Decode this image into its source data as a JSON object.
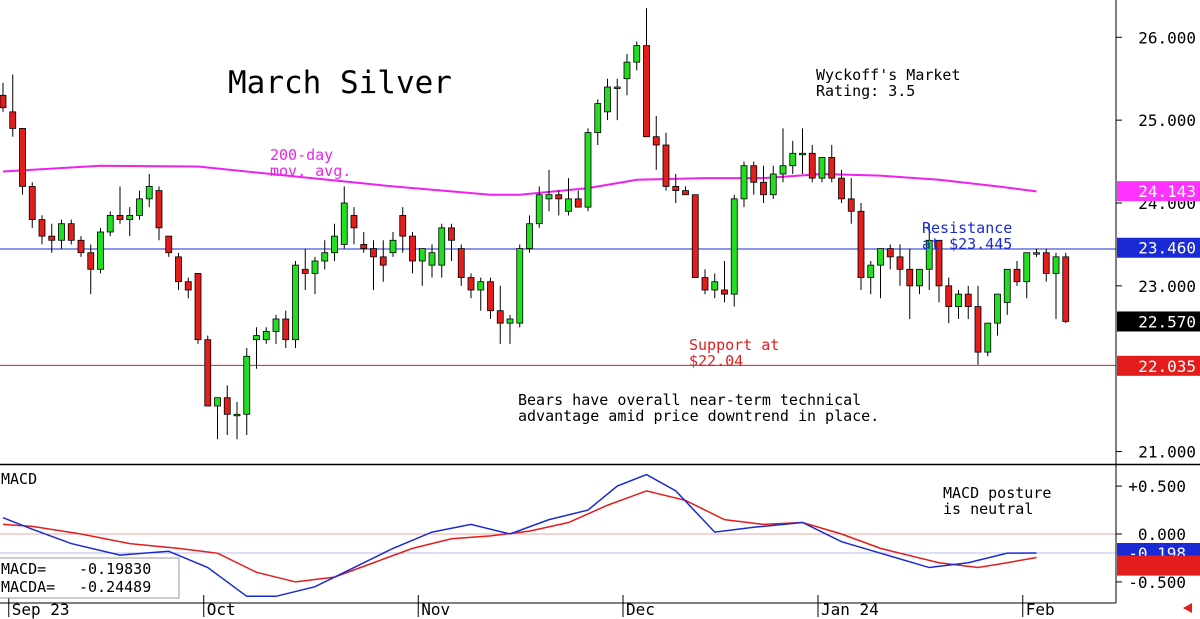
{
  "chart_data": {
    "type": "candlestick",
    "title": "March Silver",
    "rating_text": [
      "Wyckoff's Market",
      "Rating: 3.5"
    ],
    "ylim": [
      20.85,
      26.45
    ],
    "y_ticks": [
      {
        "value": 26.0,
        "label": "26.000"
      },
      {
        "value": 25.0,
        "label": "25.000"
      },
      {
        "value": 24.0,
        "label": "24.000"
      },
      {
        "value": 23.0,
        "label": "23.000"
      },
      {
        "value": 21.0,
        "label": "21.000"
      }
    ],
    "x_labels": [
      {
        "index": 1,
        "label": "Sep 23"
      },
      {
        "index": 21,
        "label": "Oct"
      },
      {
        "index": 43,
        "label": "Nov"
      },
      {
        "index": 64,
        "label": "Dec"
      },
      {
        "index": 84,
        "label": "Jan 24"
      },
      {
        "index": 105,
        "label": "Feb"
      }
    ],
    "price_tags": [
      {
        "value": 24.143,
        "label": "24.143",
        "color": "#ff33ff",
        "text_color": "#ffffff"
      },
      {
        "value": 23.46,
        "label": "23.460",
        "color": "#1a2ad4",
        "text_color": "#ffffff"
      },
      {
        "value": 22.57,
        "label": "22.570",
        "color": "#000000",
        "text_color": "#ffffff"
      },
      {
        "value": 22.035,
        "label": "22.035",
        "color": "#e31c1c",
        "text_color": "#ffffff"
      }
    ],
    "resistance": {
      "value": 23.445,
      "label": [
        "Resistance",
        "at $23.445"
      ],
      "color": "#1a2ad4"
    },
    "support": {
      "value": 22.04,
      "label": [
        "Support at",
        "$22.04"
      ],
      "color": "#e31c1c"
    },
    "moving_average": {
      "label": [
        "200-day",
        "mov. avg."
      ],
      "color": "#ee22ee",
      "points": [
        [
          0,
          24.38
        ],
        [
          10,
          24.45
        ],
        [
          20,
          24.44
        ],
        [
          30,
          24.32
        ],
        [
          40,
          24.2
        ],
        [
          50,
          24.1
        ],
        [
          53,
          24.1
        ],
        [
          60,
          24.18
        ],
        [
          65,
          24.28
        ],
        [
          72,
          24.3
        ],
        [
          78,
          24.3
        ],
        [
          84,
          24.35
        ],
        [
          90,
          24.33
        ],
        [
          96,
          24.28
        ],
        [
          102,
          24.2
        ],
        [
          106,
          24.14
        ]
      ]
    },
    "commentary": [
      "Bears have overall near-term technical",
      "advantage amid price downtrend in place."
    ],
    "series": [
      {
        "name": "candles",
        "values": [
          [
            25.3,
            25.45,
            25.1,
            25.15
          ],
          [
            25.1,
            25.55,
            24.8,
            24.9
          ],
          [
            24.9,
            24.9,
            24.1,
            24.2
          ],
          [
            24.2,
            24.25,
            23.7,
            23.8
          ],
          [
            23.8,
            23.85,
            23.5,
            23.6
          ],
          [
            23.6,
            23.75,
            23.4,
            23.55
          ],
          [
            23.55,
            23.8,
            23.45,
            23.75
          ],
          [
            23.75,
            23.8,
            23.5,
            23.55
          ],
          [
            23.55,
            23.6,
            23.35,
            23.4
          ],
          [
            23.4,
            23.5,
            22.9,
            23.2
          ],
          [
            23.2,
            23.7,
            23.15,
            23.65
          ],
          [
            23.65,
            23.9,
            23.6,
            23.85
          ],
          [
            23.85,
            24.2,
            23.75,
            23.8
          ],
          [
            23.8,
            23.95,
            23.6,
            23.85
          ],
          [
            23.85,
            24.15,
            23.8,
            24.05
          ],
          [
            24.05,
            24.35,
            23.95,
            24.2
          ],
          [
            24.15,
            24.2,
            23.55,
            23.7
          ],
          [
            23.6,
            23.6,
            23.35,
            23.4
          ],
          [
            23.35,
            23.4,
            22.95,
            23.05
          ],
          [
            23.05,
            23.1,
            22.85,
            22.95
          ],
          [
            23.15,
            23.15,
            22.3,
            22.35
          ],
          [
            22.35,
            22.4,
            21.55,
            21.55
          ],
          [
            21.55,
            21.65,
            21.15,
            21.65
          ],
          [
            21.65,
            21.8,
            21.2,
            21.45
          ],
          [
            21.45,
            21.6,
            21.15,
            21.45
          ],
          [
            21.45,
            22.25,
            21.2,
            22.15
          ],
          [
            22.35,
            22.5,
            22.0,
            22.4
          ],
          [
            22.35,
            22.5,
            22.3,
            22.45
          ],
          [
            22.45,
            22.65,
            22.3,
            22.6
          ],
          [
            22.6,
            22.7,
            22.25,
            22.35
          ],
          [
            22.35,
            23.3,
            22.25,
            23.25
          ],
          [
            23.2,
            23.45,
            22.95,
            23.15
          ],
          [
            23.15,
            23.35,
            22.9,
            23.3
          ],
          [
            23.3,
            23.55,
            23.2,
            23.4
          ],
          [
            23.4,
            23.75,
            23.3,
            23.6
          ],
          [
            23.5,
            24.2,
            23.45,
            24.0
          ],
          [
            23.85,
            23.95,
            23.5,
            23.7
          ],
          [
            23.5,
            23.65,
            23.4,
            23.45
          ],
          [
            23.45,
            23.55,
            22.95,
            23.35
          ],
          [
            23.35,
            23.55,
            23.05,
            23.25
          ],
          [
            23.4,
            23.65,
            23.35,
            23.55
          ],
          [
            23.85,
            23.95,
            23.4,
            23.6
          ],
          [
            23.6,
            23.65,
            23.15,
            23.3
          ],
          [
            23.3,
            23.45,
            23.0,
            23.45
          ],
          [
            23.25,
            23.5,
            23.1,
            23.4
          ],
          [
            23.25,
            23.75,
            23.1,
            23.7
          ],
          [
            23.7,
            23.75,
            23.3,
            23.55
          ],
          [
            23.45,
            23.5,
            23.0,
            23.1
          ],
          [
            23.1,
            23.15,
            22.85,
            22.95
          ],
          [
            22.95,
            23.1,
            22.7,
            23.05
          ],
          [
            23.05,
            23.1,
            22.6,
            22.7
          ],
          [
            22.7,
            23.0,
            22.3,
            22.55
          ],
          [
            22.55,
            22.65,
            22.3,
            22.6
          ],
          [
            22.55,
            23.5,
            22.5,
            23.45
          ],
          [
            23.45,
            23.85,
            23.4,
            23.75
          ],
          [
            23.75,
            24.2,
            23.7,
            24.1
          ],
          [
            24.05,
            24.4,
            23.9,
            24.1
          ],
          [
            24.1,
            24.15,
            23.85,
            24.05
          ],
          [
            23.9,
            24.3,
            23.85,
            24.05
          ],
          [
            24.05,
            24.15,
            23.95,
            23.95
          ],
          [
            23.95,
            24.9,
            23.9,
            24.85
          ],
          [
            24.85,
            25.25,
            24.7,
            25.2
          ],
          [
            25.1,
            25.5,
            25.0,
            25.4
          ],
          [
            25.4,
            25.5,
            25.0,
            25.4
          ],
          [
            25.5,
            25.8,
            25.3,
            25.7
          ],
          [
            25.7,
            25.95,
            25.6,
            25.9
          ],
          [
            25.9,
            26.35,
            24.8,
            24.8
          ],
          [
            24.8,
            25.05,
            24.4,
            24.7
          ],
          [
            24.7,
            24.85,
            24.15,
            24.2
          ],
          [
            24.2,
            24.35,
            24.0,
            24.15
          ],
          [
            24.15,
            24.2,
            24.1,
            24.1
          ],
          [
            24.1,
            24.1,
            23.1,
            23.1
          ],
          [
            23.1,
            23.2,
            22.9,
            22.95
          ],
          [
            22.95,
            23.15,
            22.85,
            23.05
          ],
          [
            22.95,
            23.3,
            22.8,
            22.9
          ],
          [
            22.9,
            24.1,
            22.75,
            24.05
          ],
          [
            24.05,
            24.5,
            23.95,
            24.45
          ],
          [
            24.45,
            24.5,
            24.1,
            24.25
          ],
          [
            24.25,
            24.45,
            24.0,
            24.1
          ],
          [
            24.1,
            24.45,
            24.05,
            24.35
          ],
          [
            24.35,
            24.9,
            24.25,
            24.45
          ],
          [
            24.45,
            24.75,
            24.35,
            24.6
          ],
          [
            24.6,
            24.9,
            24.35,
            24.6
          ],
          [
            24.6,
            24.7,
            24.25,
            24.3
          ],
          [
            24.3,
            24.5,
            24.25,
            24.55
          ],
          [
            24.55,
            24.7,
            24.25,
            24.3
          ],
          [
            24.3,
            24.4,
            24.0,
            24.05
          ],
          [
            24.05,
            24.3,
            23.75,
            23.9
          ],
          [
            23.9,
            24.0,
            22.95,
            23.1
          ],
          [
            23.1,
            23.3,
            22.9,
            23.25
          ],
          [
            23.25,
            23.45,
            22.85,
            23.45
          ],
          [
            23.45,
            23.5,
            23.2,
            23.35
          ],
          [
            23.35,
            23.5,
            23.0,
            23.2
          ],
          [
            23.2,
            23.45,
            22.6,
            23.0
          ],
          [
            23.0,
            23.2,
            22.9,
            23.2
          ],
          [
            23.2,
            23.75,
            22.95,
            23.55
          ],
          [
            23.55,
            23.55,
            22.8,
            23.0
          ],
          [
            23.0,
            23.1,
            22.55,
            22.75
          ],
          [
            22.75,
            22.95,
            22.6,
            22.9
          ],
          [
            22.9,
            23.0,
            22.6,
            22.75
          ],
          [
            22.75,
            23.0,
            22.05,
            22.2
          ],
          [
            22.2,
            22.55,
            22.15,
            22.55
          ],
          [
            22.55,
            22.8,
            22.4,
            22.9
          ],
          [
            22.8,
            23.2,
            22.65,
            23.2
          ],
          [
            23.2,
            23.3,
            23.0,
            23.05
          ],
          [
            23.05,
            23.35,
            22.85,
            23.4
          ],
          [
            23.4,
            23.45,
            23.35,
            23.4
          ],
          [
            23.4,
            23.45,
            23.05,
            23.15
          ],
          [
            23.15,
            23.4,
            22.6,
            23.35
          ],
          [
            23.35,
            23.4,
            22.55,
            22.57
          ]
        ]
      }
    ],
    "macd": {
      "title": "MACD",
      "ylim": [
        -0.72,
        0.72
      ],
      "y_ticks": [
        {
          "value": 0.5,
          "label": "+0.500"
        },
        {
          "value": 0.0,
          "label": "0.000"
        },
        {
          "value": -0.5,
          "label": "-0.500"
        }
      ],
      "reference_line": -0.198,
      "commentary": [
        "MACD posture",
        "is neutral"
      ],
      "readout": {
        "macd_label": "MACD=",
        "macd_value": "-0.19830",
        "macda_label": "MACDA=",
        "macda_value": "-0.24489"
      },
      "tags": [
        {
          "value": -0.198,
          "label": "-0.198",
          "color": "#1a2ad4",
          "text_color": "#ffffff"
        },
        {
          "value": -0.33,
          "label": "",
          "color": "#e31c1c",
          "text_color": "#ffffff"
        }
      ],
      "macd_line": {
        "color": "#1a2ad4",
        "points": [
          [
            0,
            0.17
          ],
          [
            3,
            0.05
          ],
          [
            7,
            -0.1
          ],
          [
            12,
            -0.22
          ],
          [
            17,
            -0.18
          ],
          [
            21,
            -0.35
          ],
          [
            25,
            -0.65
          ],
          [
            28,
            -0.65
          ],
          [
            32,
            -0.55
          ],
          [
            36,
            -0.35
          ],
          [
            40,
            -0.15
          ],
          [
            44,
            0.02
          ],
          [
            48,
            0.1
          ],
          [
            52,
            0.0
          ],
          [
            56,
            0.15
          ],
          [
            60,
            0.25
          ],
          [
            63,
            0.5
          ],
          [
            66,
            0.62
          ],
          [
            69,
            0.45
          ],
          [
            73,
            0.02
          ],
          [
            77,
            0.07
          ],
          [
            82,
            0.12
          ],
          [
            86,
            -0.08
          ],
          [
            90,
            -0.2
          ],
          [
            95,
            -0.35
          ],
          [
            99,
            -0.3
          ],
          [
            103,
            -0.2
          ],
          [
            106,
            -0.198
          ]
        ]
      },
      "signal_line": {
        "color": "#e31c1c",
        "points": [
          [
            0,
            0.1
          ],
          [
            3,
            0.08
          ],
          [
            8,
            0.0
          ],
          [
            13,
            -0.1
          ],
          [
            18,
            -0.15
          ],
          [
            22,
            -0.2
          ],
          [
            26,
            -0.4
          ],
          [
            30,
            -0.5
          ],
          [
            34,
            -0.45
          ],
          [
            38,
            -0.3
          ],
          [
            42,
            -0.15
          ],
          [
            46,
            -0.05
          ],
          [
            50,
            -0.02
          ],
          [
            54,
            0.03
          ],
          [
            58,
            0.12
          ],
          [
            62,
            0.3
          ],
          [
            66,
            0.45
          ],
          [
            70,
            0.35
          ],
          [
            74,
            0.15
          ],
          [
            78,
            0.1
          ],
          [
            82,
            0.12
          ],
          [
            86,
            0.0
          ],
          [
            90,
            -0.15
          ],
          [
            96,
            -0.3
          ],
          [
            100,
            -0.35
          ],
          [
            103,
            -0.3
          ],
          [
            106,
            -0.245
          ]
        ]
      }
    }
  },
  "page": {
    "back_arrow_icon": "arrow-left-icon"
  }
}
